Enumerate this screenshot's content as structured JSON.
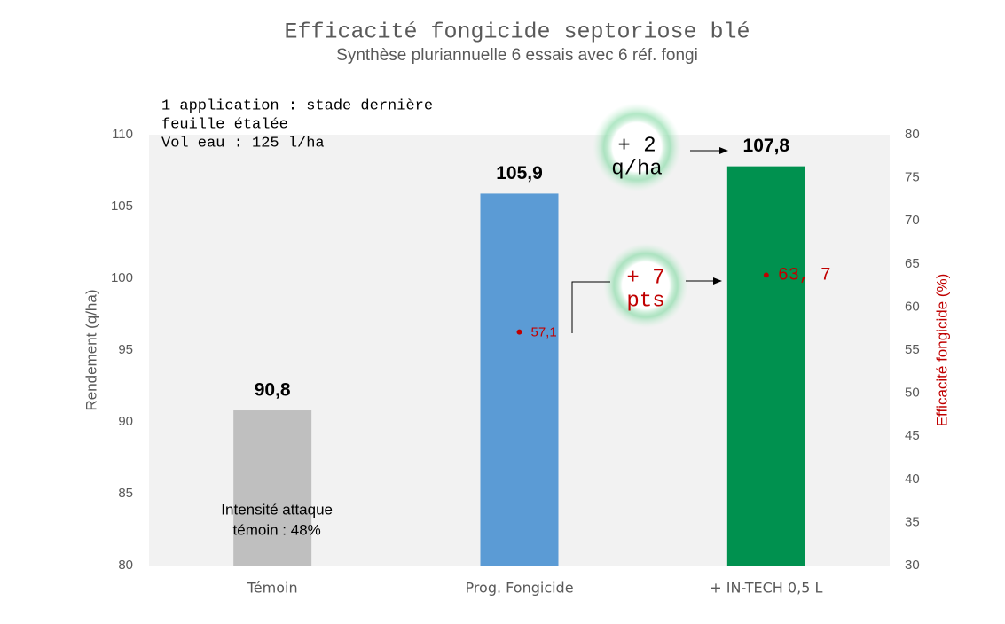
{
  "chart_data": {
    "type": "bar",
    "title": "Efficacité fongicide septoriose blé",
    "subtitle": "Synthèse pluriannuelle 6 essais avec 6 réf. fongi",
    "y_label": "Rendement (q/ha)",
    "y2_label": "Efficacité fongicide (%)",
    "categories": [
      "Témoin",
      "Prog. Fongicide",
      "+ IN-TECH 0,5 L"
    ],
    "series": [
      {
        "values": [
          90.8,
          105.9,
          107.8
        ],
        "value_labels": [
          "90,8",
          "105,9",
          "107,8"
        ],
        "colors": [
          "#bfbfbf",
          "#5b9bd5",
          "#00914f"
        ]
      },
      {
        "axis": "y2",
        "values": [
          null,
          57.1,
          63.7
        ],
        "value_labels": [
          null,
          "57,1",
          "63, 7"
        ],
        "color": "#c00000"
      }
    ],
    "ylim": [
      80,
      110
    ],
    "yticks": [
      80,
      85,
      90,
      95,
      100,
      105,
      110
    ],
    "y2lim": [
      30,
      80
    ],
    "y2ticks": [
      30,
      35,
      40,
      45,
      50,
      55,
      60,
      65,
      70,
      75,
      80
    ],
    "annotations": {
      "conditions": [
        "1 application : stade dernière",
        "feuille étalée",
        "Vol eau : 125 l/ha"
      ],
      "attack": [
        "Intensité attaque",
        "témoin : 48%"
      ],
      "yield_gain": [
        "+ 2",
        "q/ha"
      ],
      "efficacy_gain": [
        "+ 7",
        "pts"
      ]
    }
  }
}
